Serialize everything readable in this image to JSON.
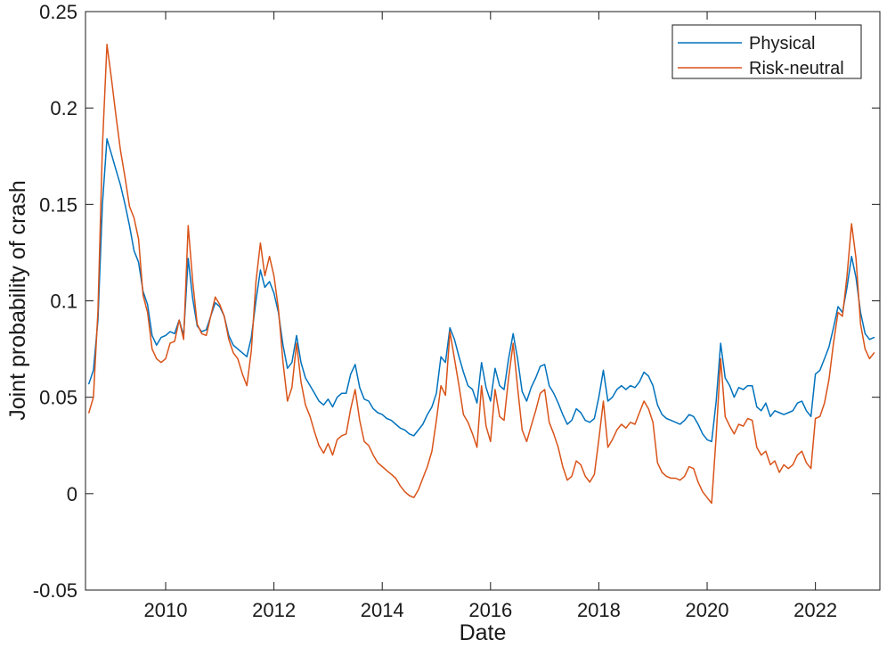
{
  "chart_data": {
    "type": "line",
    "title": "",
    "xlabel": "Date",
    "ylabel": "Joint probability of crash",
    "xlim": [
      2008.52,
      2023.19
    ],
    "ylim": [
      -0.05,
      0.25
    ],
    "xticks": [
      2010,
      2012,
      2014,
      2016,
      2018,
      2020,
      2022
    ],
    "yticks": [
      -0.05,
      0,
      0.05,
      0.1,
      0.15,
      0.2,
      0.25
    ],
    "ytick_labels": [
      "-0.05",
      "0",
      "0.05",
      "0.1",
      "0.15",
      "0.2",
      "0.25"
    ],
    "grid": false,
    "legend_position": "top-right",
    "axis_color": "#1a1a1a",
    "x": [
      2008.583,
      2008.667,
      2008.75,
      2008.833,
      2008.917,
      2009,
      2009.083,
      2009.167,
      2009.25,
      2009.333,
      2009.417,
      2009.5,
      2009.583,
      2009.667,
      2009.75,
      2009.833,
      2009.917,
      2010,
      2010.083,
      2010.167,
      2010.25,
      2010.333,
      2010.417,
      2010.5,
      2010.583,
      2010.667,
      2010.75,
      2010.833,
      2010.917,
      2011,
      2011.083,
      2011.167,
      2011.25,
      2011.333,
      2011.417,
      2011.5,
      2011.583,
      2011.667,
      2011.75,
      2011.833,
      2011.917,
      2012,
      2012.083,
      2012.167,
      2012.25,
      2012.333,
      2012.417,
      2012.5,
      2012.583,
      2012.667,
      2012.75,
      2012.833,
      2012.917,
      2013,
      2013.083,
      2013.167,
      2013.25,
      2013.333,
      2013.417,
      2013.5,
      2013.583,
      2013.667,
      2013.75,
      2013.833,
      2013.917,
      2014,
      2014.083,
      2014.167,
      2014.25,
      2014.333,
      2014.417,
      2014.5,
      2014.583,
      2014.667,
      2014.75,
      2014.833,
      2014.917,
      2015,
      2015.083,
      2015.167,
      2015.25,
      2015.333,
      2015.417,
      2015.5,
      2015.583,
      2015.667,
      2015.75,
      2015.833,
      2015.917,
      2016,
      2016.083,
      2016.167,
      2016.25,
      2016.333,
      2016.417,
      2016.5,
      2016.583,
      2016.667,
      2016.75,
      2016.833,
      2016.917,
      2017,
      2017.083,
      2017.167,
      2017.25,
      2017.333,
      2017.417,
      2017.5,
      2017.583,
      2017.667,
      2017.75,
      2017.833,
      2017.917,
      2018,
      2018.083,
      2018.167,
      2018.25,
      2018.333,
      2018.417,
      2018.5,
      2018.583,
      2018.667,
      2018.75,
      2018.833,
      2018.917,
      2019,
      2019.083,
      2019.167,
      2019.25,
      2019.333,
      2019.417,
      2019.5,
      2019.583,
      2019.667,
      2019.75,
      2019.833,
      2019.917,
      2020,
      2020.083,
      2020.167,
      2020.25,
      2020.333,
      2020.417,
      2020.5,
      2020.583,
      2020.667,
      2020.75,
      2020.833,
      2020.917,
      2021,
      2021.083,
      2021.167,
      2021.25,
      2021.333,
      2021.417,
      2021.5,
      2021.583,
      2021.667,
      2021.75,
      2021.833,
      2021.917,
      2022,
      2022.083,
      2022.167,
      2022.25,
      2022.333,
      2022.417,
      2022.5,
      2022.583,
      2022.667,
      2022.75,
      2022.833,
      2022.917,
      2023,
      2023.083
    ],
    "series": [
      {
        "name": "Physical",
        "color": "#0072BD",
        "values": [
          0.057,
          0.064,
          0.09,
          0.15,
          0.184,
          0.176,
          0.168,
          0.16,
          0.15,
          0.139,
          0.126,
          0.12,
          0.105,
          0.098,
          0.082,
          0.077,
          0.081,
          0.082,
          0.084,
          0.083,
          0.09,
          0.082,
          0.122,
          0.101,
          0.087,
          0.084,
          0.085,
          0.092,
          0.099,
          0.097,
          0.092,
          0.082,
          0.077,
          0.075,
          0.073,
          0.071,
          0.081,
          0.1,
          0.116,
          0.107,
          0.11,
          0.104,
          0.094,
          0.077,
          0.065,
          0.068,
          0.082,
          0.068,
          0.06,
          0.056,
          0.052,
          0.048,
          0.046,
          0.049,
          0.045,
          0.05,
          0.052,
          0.052,
          0.062,
          0.067,
          0.055,
          0.049,
          0.048,
          0.044,
          0.042,
          0.041,
          0.039,
          0.038,
          0.036,
          0.034,
          0.033,
          0.031,
          0.03,
          0.033,
          0.036,
          0.041,
          0.045,
          0.052,
          0.071,
          0.068,
          0.086,
          0.08,
          0.071,
          0.063,
          0.056,
          0.054,
          0.047,
          0.068,
          0.055,
          0.048,
          0.065,
          0.056,
          0.054,
          0.07,
          0.083,
          0.07,
          0.053,
          0.048,
          0.055,
          0.06,
          0.066,
          0.067,
          0.056,
          0.052,
          0.047,
          0.041,
          0.036,
          0.038,
          0.044,
          0.042,
          0.038,
          0.037,
          0.039,
          0.05,
          0.064,
          0.048,
          0.05,
          0.054,
          0.056,
          0.054,
          0.056,
          0.055,
          0.058,
          0.063,
          0.061,
          0.056,
          0.046,
          0.041,
          0.039,
          0.038,
          0.037,
          0.036,
          0.038,
          0.041,
          0.04,
          0.036,
          0.031,
          0.028,
          0.027,
          0.048,
          0.078,
          0.06,
          0.056,
          0.05,
          0.055,
          0.054,
          0.056,
          0.056,
          0.045,
          0.043,
          0.047,
          0.04,
          0.043,
          0.042,
          0.041,
          0.042,
          0.043,
          0.047,
          0.048,
          0.043,
          0.04,
          0.062,
          0.064,
          0.07,
          0.076,
          0.086,
          0.097,
          0.094,
          0.107,
          0.123,
          0.112,
          0.094,
          0.083,
          0.08,
          0.081
        ]
      },
      {
        "name": "Risk-neutral",
        "color": "#D95319",
        "values": [
          0.042,
          0.05,
          0.095,
          0.18,
          0.233,
          0.215,
          0.196,
          0.178,
          0.164,
          0.149,
          0.143,
          0.132,
          0.103,
          0.094,
          0.075,
          0.07,
          0.068,
          0.07,
          0.078,
          0.079,
          0.09,
          0.08,
          0.139,
          0.11,
          0.088,
          0.083,
          0.082,
          0.092,
          0.102,
          0.098,
          0.092,
          0.08,
          0.073,
          0.07,
          0.062,
          0.056,
          0.074,
          0.11,
          0.13,
          0.113,
          0.123,
          0.113,
          0.096,
          0.068,
          0.048,
          0.055,
          0.078,
          0.058,
          0.046,
          0.04,
          0.032,
          0.025,
          0.021,
          0.026,
          0.02,
          0.028,
          0.03,
          0.031,
          0.044,
          0.054,
          0.038,
          0.027,
          0.025,
          0.02,
          0.016,
          0.014,
          0.012,
          0.01,
          0.008,
          0.004,
          0.001,
          -0.001,
          -0.002,
          0.002,
          0.008,
          0.014,
          0.022,
          0.038,
          0.056,
          0.051,
          0.084,
          0.07,
          0.056,
          0.041,
          0.037,
          0.031,
          0.024,
          0.056,
          0.035,
          0.027,
          0.054,
          0.04,
          0.038,
          0.06,
          0.078,
          0.055,
          0.033,
          0.027,
          0.035,
          0.043,
          0.052,
          0.054,
          0.037,
          0.031,
          0.024,
          0.014,
          0.007,
          0.009,
          0.017,
          0.015,
          0.009,
          0.006,
          0.01,
          0.028,
          0.048,
          0.024,
          0.028,
          0.033,
          0.036,
          0.034,
          0.037,
          0.036,
          0.042,
          0.048,
          0.044,
          0.037,
          0.016,
          0.011,
          0.009,
          0.008,
          0.008,
          0.007,
          0.009,
          0.014,
          0.013,
          0.006,
          0.001,
          -0.002,
          -0.005,
          0.03,
          0.07,
          0.04,
          0.035,
          0.031,
          0.036,
          0.035,
          0.039,
          0.038,
          0.024,
          0.02,
          0.022,
          0.015,
          0.017,
          0.011,
          0.015,
          0.013,
          0.015,
          0.02,
          0.022,
          0.016,
          0.013,
          0.039,
          0.04,
          0.047,
          0.059,
          0.078,
          0.094,
          0.092,
          0.113,
          0.14,
          0.122,
          0.088,
          0.075,
          0.07,
          0.073
        ]
      }
    ]
  }
}
